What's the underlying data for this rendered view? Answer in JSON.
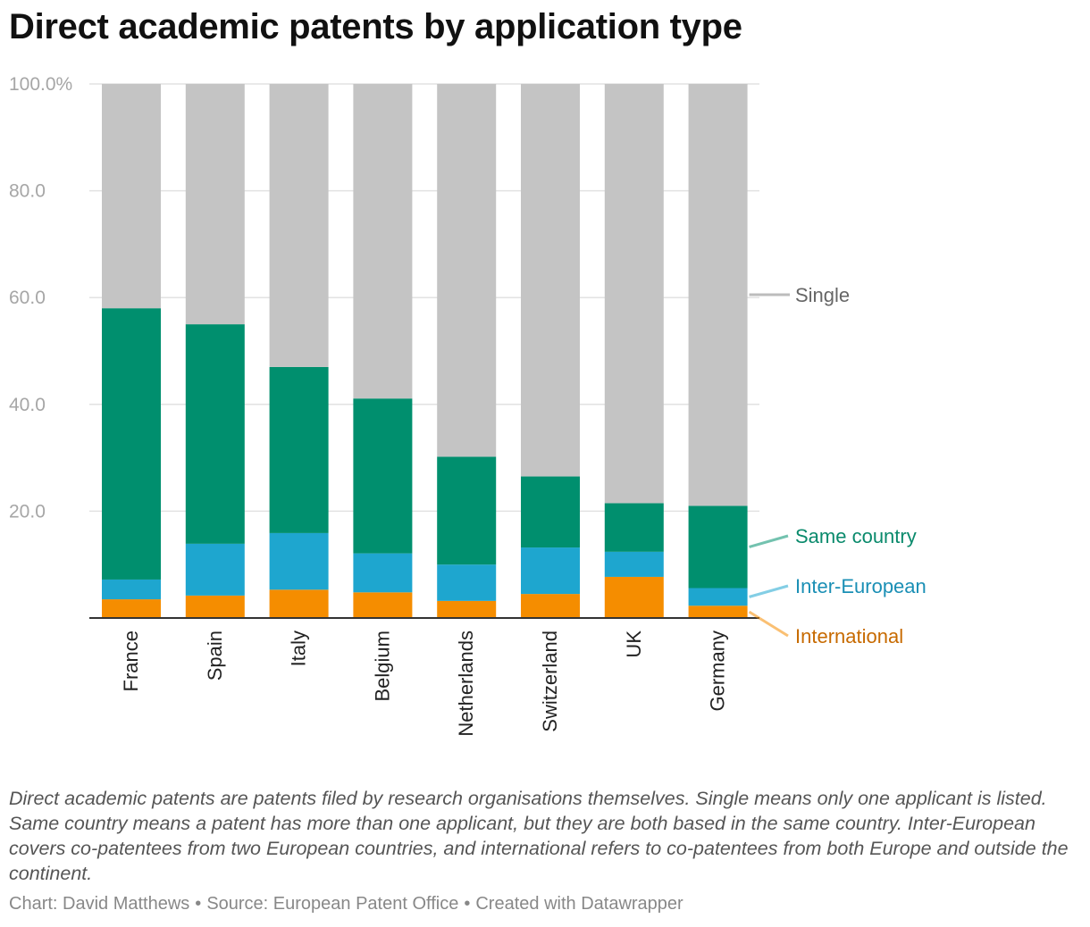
{
  "title": "Direct academic patents by application type",
  "chart_data": {
    "type": "bar",
    "stacked": true,
    "title": "Direct academic patents by application type",
    "xlabel": "",
    "ylabel": "",
    "ylim": [
      0,
      100
    ],
    "yticks": [
      {
        "value": 100,
        "label": "100.0%"
      },
      {
        "value": 80,
        "label": "80.0"
      },
      {
        "value": 60,
        "label": "60.0"
      },
      {
        "value": 40,
        "label": "40.0"
      },
      {
        "value": 20,
        "label": "20.0"
      }
    ],
    "grid": true,
    "categories": [
      "France",
      "Spain",
      "Italy",
      "Belgium",
      "Netherlands",
      "Switzerland",
      "UK",
      "Germany"
    ],
    "series": [
      {
        "name": "International",
        "color": "#f58d00",
        "label_color": "#c76a00",
        "values": [
          3.5,
          4.2,
          5.3,
          4.8,
          3.2,
          4.5,
          7.7,
          2.3
        ]
      },
      {
        "name": "Inter-European",
        "color": "#1ea6cf",
        "label_color": "#1a8fb5",
        "values": [
          3.7,
          9.7,
          10.6,
          7.3,
          6.8,
          8.7,
          4.7,
          3.3
        ]
      },
      {
        "name": "Same country",
        "color": "#008f6e",
        "label_color": "#0a8a6c",
        "values": [
          50.8,
          41.1,
          31.1,
          29.0,
          20.2,
          13.3,
          9.1,
          15.4
        ]
      },
      {
        "name": "Single",
        "color": "#c4c4c4",
        "label_color": "#666666",
        "values": [
          42.0,
          45.0,
          53.0,
          58.9,
          69.8,
          73.5,
          78.5,
          79.0
        ]
      }
    ]
  },
  "note": "Direct academic patents are patents filed by research organisations themselves. Single means only one applicant is listed. Same country means a patent has more than one applicant, but they are both based in the same country. Inter-European covers co-patentees from two European countries, and international refers to co-patentees from both Europe and outside the continent.",
  "credits": {
    "chart": "Chart: David Matthews",
    "source": "Source: European Patent Office",
    "created": "Created with Datawrapper"
  }
}
